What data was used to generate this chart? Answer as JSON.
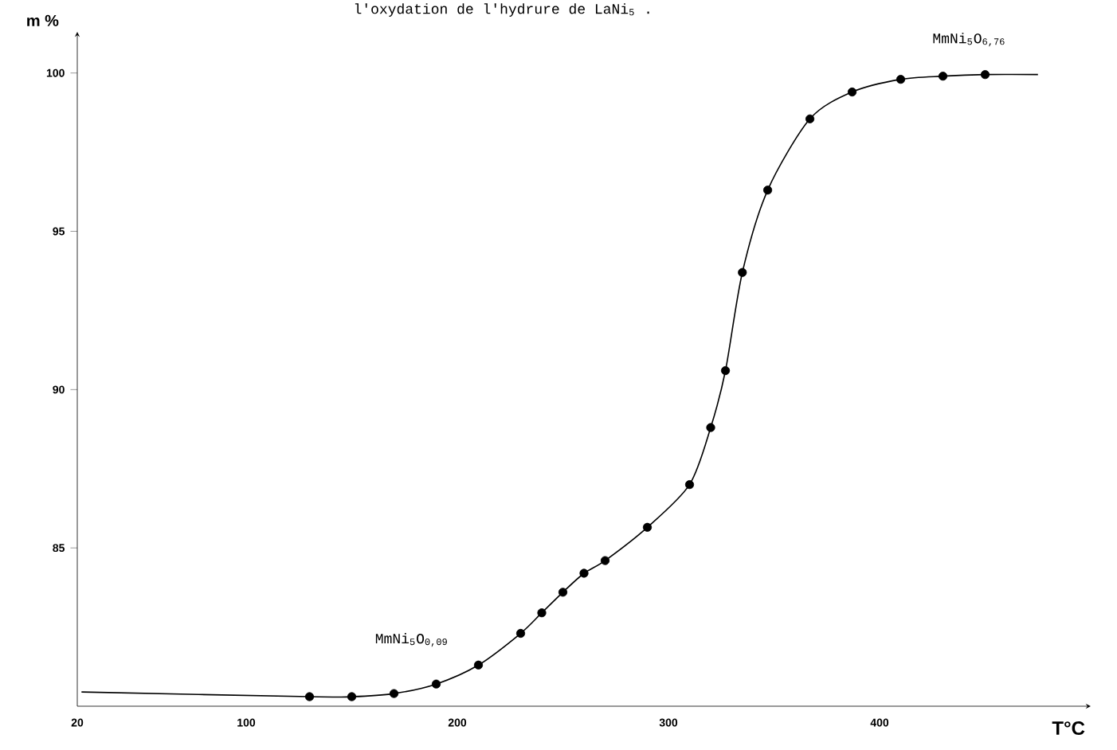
{
  "chart_data": {
    "type": "line",
    "title": "l'oxydation de l'hydrure de LaNi$_{5}$ .",
    "xlabel": "T°C",
    "ylabel": "m %",
    "xlim": [
      20,
      500
    ],
    "ylim": [
      80,
      101.3
    ],
    "xticks": [
      20,
      100,
      200,
      300,
      400
    ],
    "yticks": [
      85,
      90,
      95,
      100
    ],
    "series": [
      {
        "color": "#000000",
        "marker": "none",
        "line_style": "solid",
        "x": [
          22,
          130,
          150,
          170,
          190,
          210,
          230,
          240,
          250,
          260,
          270,
          290,
          310,
          320,
          327,
          335,
          347,
          367,
          387,
          410,
          430,
          450,
          475
        ],
        "values": [
          80.45,
          80.3,
          80.3,
          80.4,
          80.7,
          81.3,
          82.3,
          82.95,
          83.6,
          84.2,
          84.6,
          85.65,
          87.0,
          88.8,
          90.6,
          93.7,
          96.3,
          98.55,
          99.4,
          99.8,
          99.9,
          99.95,
          99.95
        ]
      },
      {
        "type": "scatter",
        "color": "#000000",
        "marker": "circle",
        "x": [
          130,
          150,
          170,
          190,
          210,
          230,
          240,
          250,
          260,
          270,
          290,
          310,
          320,
          327,
          335,
          347,
          367,
          387,
          410,
          430,
          450
        ],
        "values": [
          80.3,
          80.3,
          80.4,
          80.7,
          81.3,
          82.3,
          82.95,
          83.6,
          84.2,
          84.6,
          85.65,
          87.0,
          88.8,
          90.6,
          93.7,
          96.3,
          98.55,
          99.4,
          99.8,
          99.9,
          99.95
        ]
      }
    ],
    "annotations": [
      "MmNi$_{5}$O$_{0,09}$",
      "MmNi$_{5}$O$_{6,76}$"
    ]
  }
}
